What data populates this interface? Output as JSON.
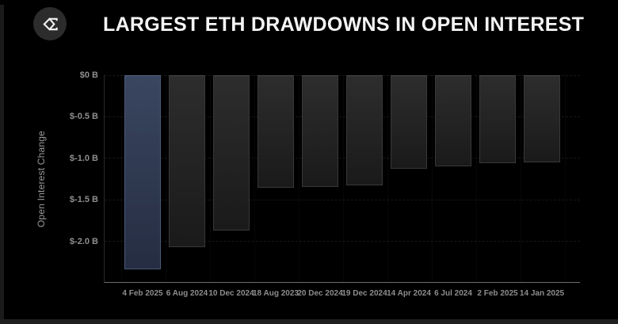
{
  "header": {
    "title": "LARGEST ETH DRAWDOWNS IN OPEN INTEREST",
    "logo_icon": "sigma-logo"
  },
  "chart_data": {
    "type": "bar",
    "title": "LARGEST ETH DRAWDOWNS IN OPEN INTEREST",
    "xlabel": "",
    "ylabel": "Open Interest Change",
    "unit": "billions USD",
    "categories": [
      "4 Feb 2025",
      "6 Aug 2024",
      "10 Dec 2024",
      "18 Aug 2023",
      "20 Dec 2024",
      "19 Dec 2024",
      "14 Apr 2024",
      "6 Jul 2024",
      "2 Feb 2025",
      "14 Jan 2025"
    ],
    "values": [
      -2.35,
      -2.08,
      -1.88,
      -1.36,
      -1.35,
      -1.33,
      -1.13,
      -1.1,
      -1.06,
      -1.05
    ],
    "ylim": [
      -2.5,
      0
    ],
    "yticks": [
      0,
      -0.5,
      -1.0,
      -1.5,
      -2.0
    ],
    "ytick_labels": [
      "$0 B",
      "$-0.5 B",
      "$-1.0 B",
      "$-1.5 B",
      "$-2.0 B"
    ],
    "highlight_index": 0,
    "grid": true,
    "legend": false,
    "colors": {
      "background": "#000000",
      "title_text": "#f4f4f4",
      "axis_text": "#8f8f8f",
      "axis_line": "#6e6e6e",
      "bar_fill_top": "#2d2d2d",
      "bar_fill_bottom": "#1a1a1a",
      "bar_border": "#383838",
      "highlight_fill_top": "#3a4660",
      "highlight_fill_bottom": "#252d42",
      "highlight_border": "#4b5979"
    }
  }
}
